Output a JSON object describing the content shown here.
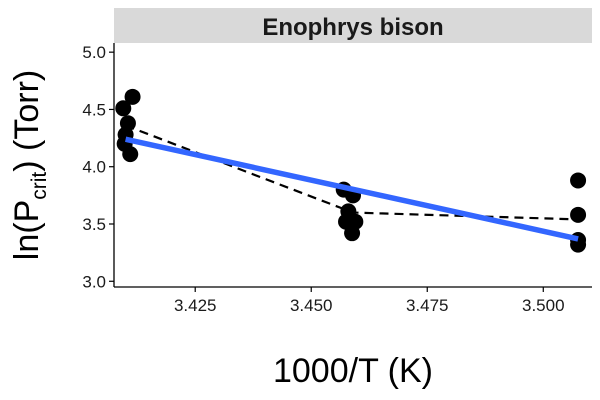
{
  "chart_data": {
    "type": "scatter",
    "facet_title": "Enophrys bison",
    "xlabel": "1000/T (K)",
    "ylabel": {
      "prefix": "ln(P",
      "subscript": "crit",
      "suffix": ") (Torr)"
    },
    "xlim": [
      3.4075,
      3.5105
    ],
    "ylim": [
      2.95,
      5.08
    ],
    "x_ticks": [
      3.425,
      3.45,
      3.475,
      3.5
    ],
    "x_tick_labels": [
      "3.425",
      "3.450",
      "3.475",
      "3.500"
    ],
    "y_ticks": [
      3.0,
      3.5,
      4.0,
      4.5,
      5.0
    ],
    "y_tick_labels": [
      "3.0",
      "3.5",
      "4.0",
      "4.5",
      "5.0"
    ],
    "grid": false,
    "points": [
      {
        "x": 3.4095,
        "y": 4.51
      },
      {
        "x": 3.4115,
        "y": 4.61
      },
      {
        "x": 3.4105,
        "y": 4.38
      },
      {
        "x": 3.41,
        "y": 4.28
      },
      {
        "x": 3.4098,
        "y": 4.2
      },
      {
        "x": 3.411,
        "y": 4.11
      },
      {
        "x": 3.457,
        "y": 3.8
      },
      {
        "x": 3.459,
        "y": 3.75
      },
      {
        "x": 3.458,
        "y": 3.61
      },
      {
        "x": 3.4575,
        "y": 3.52
      },
      {
        "x": 3.4595,
        "y": 3.52
      },
      {
        "x": 3.4588,
        "y": 3.42
      },
      {
        "x": 3.5075,
        "y": 3.88
      },
      {
        "x": 3.5075,
        "y": 3.58
      },
      {
        "x": 3.5075,
        "y": 3.36
      },
      {
        "x": 3.5075,
        "y": 3.32
      }
    ],
    "trend_dashed": {
      "x": [
        3.41,
        3.459,
        3.5075
      ],
      "y": [
        4.36,
        3.6,
        3.54
      ]
    },
    "fit_line": {
      "x": [
        3.41,
        3.5075
      ],
      "y": [
        4.24,
        3.37
      ]
    },
    "colors": {
      "points": "#000000",
      "fit_line": "#3366ff",
      "dashed_line": "#000000",
      "strip_background": "#d9d9d9",
      "axis": "#000000"
    }
  }
}
